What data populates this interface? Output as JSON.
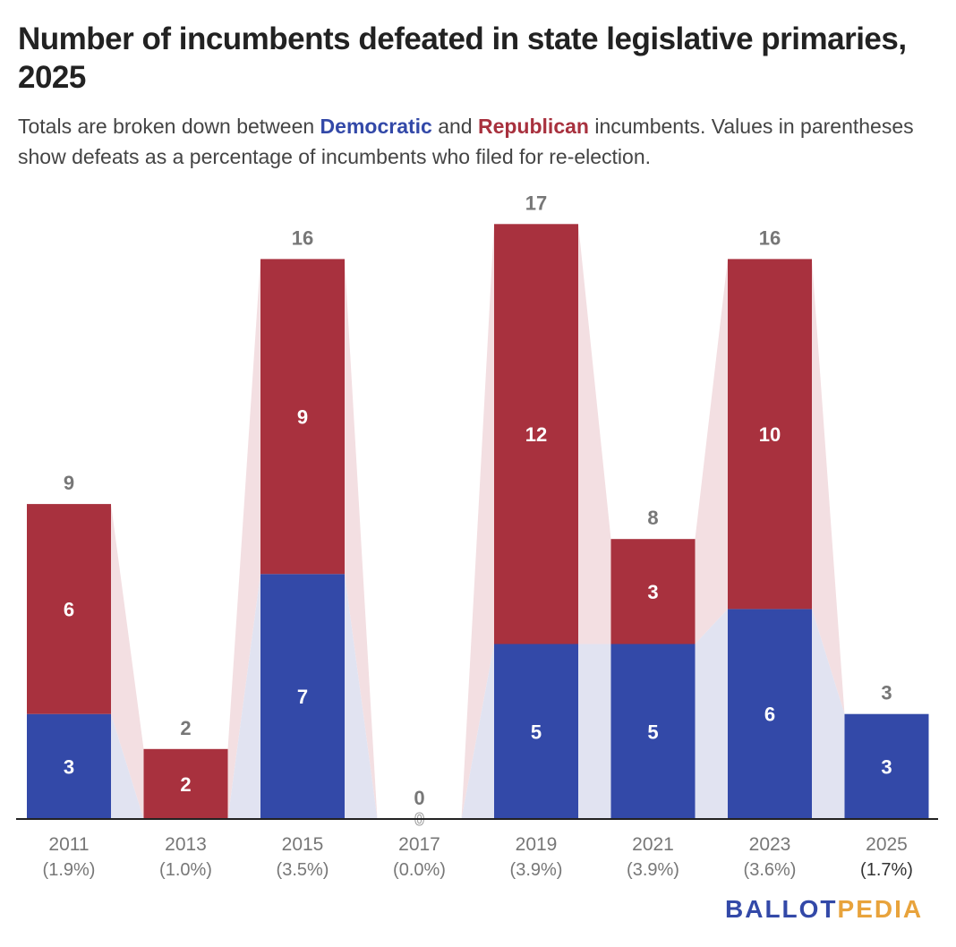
{
  "title": "Number of incumbents defeated in state legislative primaries, 2025",
  "subtitle": {
    "part1": "Totals are broken down between ",
    "dem": "Democratic",
    "part2": " and ",
    "rep": "Republican",
    "part3": " incumbents. Values in parentheses show defeats as a percentage of incumbents who filed for re-election."
  },
  "logo": {
    "part1": "BALLOT",
    "part2": "PEDIA"
  },
  "colors": {
    "democratic": "#3349a8",
    "republican": "#a8313e",
    "dem_band": "#e1e3f1",
    "rep_band": "#f3dfe2",
    "total_label": "#777777",
    "axis": "#222222"
  },
  "chart_data": {
    "type": "bar",
    "stacked": true,
    "categories": [
      "2011",
      "2013",
      "2015",
      "2017",
      "2019",
      "2021",
      "2023",
      "2025"
    ],
    "percent_labels": [
      "(1.9%)",
      "(1.0%)",
      "(3.5%)",
      "(0.0%)",
      "(3.9%)",
      "(3.9%)",
      "(3.6%)",
      "(1.7%)"
    ],
    "series": [
      {
        "name": "Democratic",
        "values": [
          3,
          0,
          7,
          0,
          5,
          5,
          6,
          3
        ]
      },
      {
        "name": "Republican",
        "values": [
          6,
          2,
          9,
          0,
          12,
          3,
          10,
          0
        ]
      }
    ],
    "totals": [
      9,
      2,
      16,
      0,
      17,
      8,
      16,
      3
    ],
    "ylim": [
      0,
      17
    ],
    "grid": false,
    "legend": "none"
  }
}
